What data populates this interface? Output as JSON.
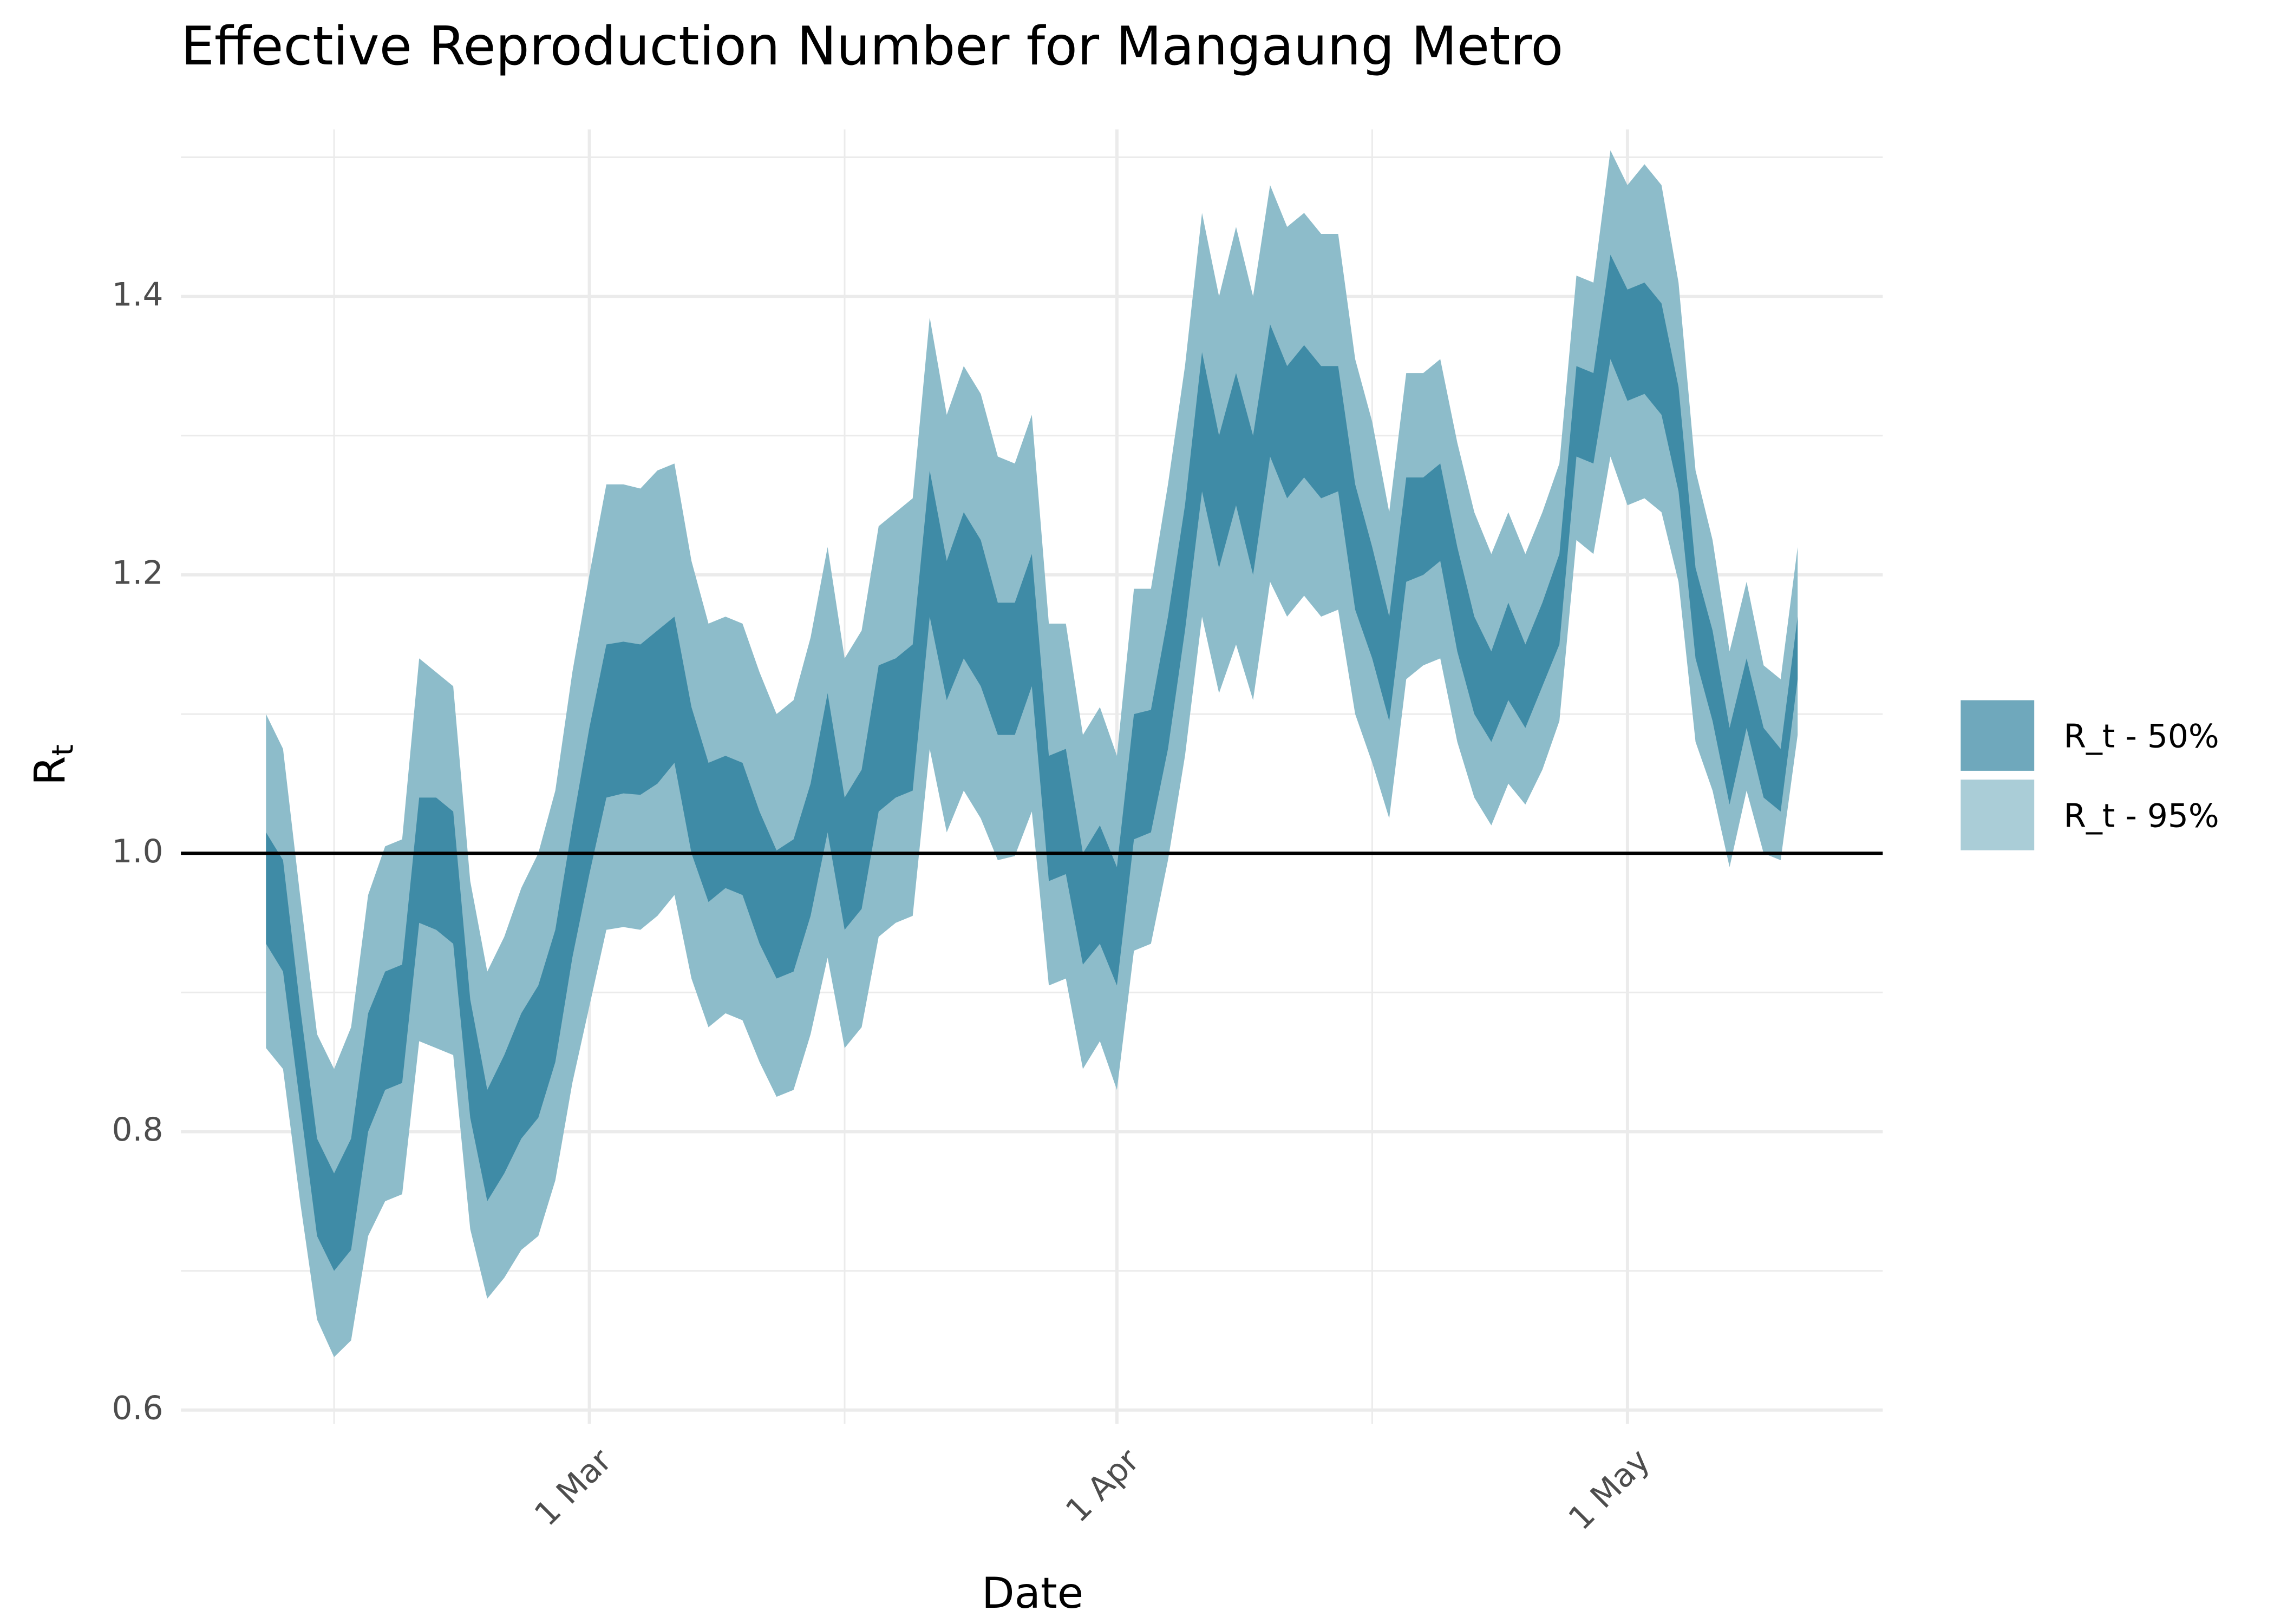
{
  "chart_data": {
    "type": "ribbon",
    "title": "Effective Reproduction Number for Mangaung Metro",
    "xlabel": "Date",
    "ylabel": "R",
    "ylabel_subscript": "t",
    "x": [
      "10 Feb",
      "11 Feb",
      "12 Feb",
      "13 Feb",
      "14 Feb",
      "15 Feb",
      "16 Feb",
      "17 Feb",
      "18 Feb",
      "19 Feb",
      "20 Feb",
      "21 Feb",
      "22 Feb",
      "23 Feb",
      "24 Feb",
      "25 Feb",
      "26 Feb",
      "27 Feb",
      "28 Feb",
      "1 Mar",
      "2 Mar",
      "3 Mar",
      "4 Mar",
      "5 Mar",
      "6 Mar",
      "7 Mar",
      "8 Mar",
      "9 Mar",
      "10 Mar",
      "11 Mar",
      "12 Mar",
      "13 Mar",
      "14 Mar",
      "15 Mar",
      "16 Mar",
      "17 Mar",
      "18 Mar",
      "19 Mar",
      "20 Mar",
      "21 Mar",
      "22 Mar",
      "23 Mar",
      "24 Mar",
      "25 Mar",
      "26 Mar",
      "27 Mar",
      "28 Mar",
      "29 Mar",
      "30 Mar",
      "31 Mar",
      "1 Apr",
      "2 Apr",
      "3 Apr",
      "4 Apr",
      "5 Apr",
      "6 Apr",
      "7 Apr",
      "8 Apr",
      "9 Apr",
      "10 Apr",
      "11 Apr",
      "12 Apr",
      "13 Apr",
      "14 Apr",
      "15 Apr",
      "16 Apr",
      "17 Apr",
      "18 Apr",
      "19 Apr",
      "20 Apr",
      "21 Apr",
      "22 Apr",
      "23 Apr",
      "24 Apr",
      "25 Apr",
      "26 Apr",
      "27 Apr",
      "28 Apr",
      "29 Apr",
      "30 Apr",
      "1 May",
      "2 May",
      "3 May",
      "4 May",
      "5 May",
      "6 May",
      "7 May",
      "8 May",
      "9 May",
      "10 May",
      "11 May"
    ],
    "series": [
      {
        "name": "R_t - 95%",
        "color": "#8dbcca",
        "upper": [
          1.1,
          1.075,
          0.97,
          0.87,
          0.845,
          0.875,
          0.97,
          1.005,
          1.01,
          1.14,
          1.13,
          1.12,
          0.98,
          0.915,
          0.94,
          0.975,
          1.0,
          1.045,
          1.13,
          1.2,
          1.265,
          1.265,
          1.262,
          1.275,
          1.28,
          1.21,
          1.165,
          1.17,
          1.165,
          1.13,
          1.1,
          1.11,
          1.155,
          1.22,
          1.14,
          1.16,
          1.235,
          1.245,
          1.255,
          1.385,
          1.315,
          1.35,
          1.33,
          1.285,
          1.28,
          1.315,
          1.165,
          1.165,
          1.085,
          1.105,
          1.07,
          1.19,
          1.19,
          1.265,
          1.35,
          1.46,
          1.4,
          1.45,
          1.4,
          1.48,
          1.45,
          1.46,
          1.445,
          1.445,
          1.355,
          1.31,
          1.245,
          1.345,
          1.345,
          1.355,
          1.295,
          1.245,
          1.215,
          1.245,
          1.215,
          1.245,
          1.28,
          1.415,
          1.41,
          1.505,
          1.48,
          1.495,
          1.48,
          1.41,
          1.275,
          1.225,
          1.145,
          1.195,
          1.135,
          1.125,
          1.22
        ],
        "lower": [
          0.86,
          0.845,
          0.75,
          0.665,
          0.638,
          0.65,
          0.725,
          0.75,
          0.755,
          0.865,
          0.86,
          0.855,
          0.73,
          0.68,
          0.695,
          0.715,
          0.725,
          0.765,
          0.835,
          0.89,
          0.945,
          0.947,
          0.945,
          0.955,
          0.97,
          0.91,
          0.875,
          0.885,
          0.88,
          0.85,
          0.825,
          0.83,
          0.87,
          0.925,
          0.86,
          0.875,
          0.94,
          0.95,
          0.955,
          1.075,
          1.015,
          1.045,
          1.025,
          0.995,
          0.998,
          1.03,
          0.905,
          0.91,
          0.845,
          0.865,
          0.83,
          0.93,
          0.935,
          0.995,
          1.07,
          1.17,
          1.115,
          1.15,
          1.11,
          1.195,
          1.17,
          1.185,
          1.17,
          1.175,
          1.1,
          1.065,
          1.025,
          1.125,
          1.135,
          1.14,
          1.08,
          1.04,
          1.02,
          1.05,
          1.035,
          1.06,
          1.095,
          1.225,
          1.215,
          1.285,
          1.25,
          1.255,
          1.245,
          1.195,
          1.08,
          1.045,
          0.99,
          1.045,
          1.0,
          0.995,
          1.085
        ]
      },
      {
        "name": "R_t - 50%",
        "color": "#3f8ba6",
        "upper": [
          1.015,
          0.995,
          0.89,
          0.795,
          0.77,
          0.795,
          0.885,
          0.915,
          0.92,
          1.04,
          1.04,
          1.03,
          0.895,
          0.83,
          0.855,
          0.885,
          0.905,
          0.945,
          1.02,
          1.09,
          1.15,
          1.152,
          1.15,
          1.16,
          1.17,
          1.105,
          1.065,
          1.07,
          1.065,
          1.03,
          1.002,
          1.01,
          1.05,
          1.115,
          1.04,
          1.06,
          1.135,
          1.14,
          1.15,
          1.275,
          1.21,
          1.245,
          1.225,
          1.18,
          1.18,
          1.215,
          1.07,
          1.075,
          1.0,
          1.02,
          0.99,
          1.1,
          1.103,
          1.17,
          1.25,
          1.36,
          1.3,
          1.345,
          1.3,
          1.38,
          1.35,
          1.365,
          1.35,
          1.35,
          1.265,
          1.22,
          1.17,
          1.27,
          1.27,
          1.28,
          1.22,
          1.17,
          1.145,
          1.18,
          1.15,
          1.18,
          1.215,
          1.35,
          1.345,
          1.43,
          1.405,
          1.41,
          1.395,
          1.335,
          1.205,
          1.16,
          1.09,
          1.14,
          1.09,
          1.075,
          1.17
        ],
        "lower": [
          0.935,
          0.915,
          0.82,
          0.725,
          0.7,
          0.715,
          0.8,
          0.83,
          0.835,
          0.95,
          0.945,
          0.935,
          0.81,
          0.75,
          0.77,
          0.795,
          0.81,
          0.85,
          0.925,
          0.985,
          1.04,
          1.043,
          1.042,
          1.05,
          1.065,
          1.0,
          0.965,
          0.975,
          0.97,
          0.935,
          0.91,
          0.915,
          0.955,
          1.015,
          0.945,
          0.96,
          1.03,
          1.04,
          1.045,
          1.17,
          1.11,
          1.14,
          1.12,
          1.085,
          1.085,
          1.12,
          0.98,
          0.985,
          0.92,
          0.935,
          0.905,
          1.01,
          1.015,
          1.075,
          1.16,
          1.26,
          1.205,
          1.25,
          1.2,
          1.285,
          1.255,
          1.27,
          1.255,
          1.26,
          1.175,
          1.14,
          1.095,
          1.195,
          1.2,
          1.21,
          1.145,
          1.1,
          1.08,
          1.11,
          1.09,
          1.12,
          1.15,
          1.285,
          1.28,
          1.355,
          1.325,
          1.33,
          1.315,
          1.26,
          1.14,
          1.095,
          1.035,
          1.09,
          1.04,
          1.03,
          1.125
        ]
      }
    ],
    "hline": 1,
    "xlim": [
      "5 Feb",
      "16 May"
    ],
    "xticks": [
      "1 Mar",
      "1 Apr",
      "1 May"
    ],
    "xminor": [
      "14 Feb",
      "16 Mar",
      "16 Apr"
    ],
    "ylim": [
      0.59,
      1.52
    ],
    "yticks": [
      0.6,
      0.8,
      {
        "value": 1,
        "label": "1.0"
      },
      1.2,
      1.4
    ],
    "yminor": [
      0.7,
      0.9,
      1.1,
      1.3,
      1.5
    ],
    "grid": true,
    "legend_position": "right"
  }
}
